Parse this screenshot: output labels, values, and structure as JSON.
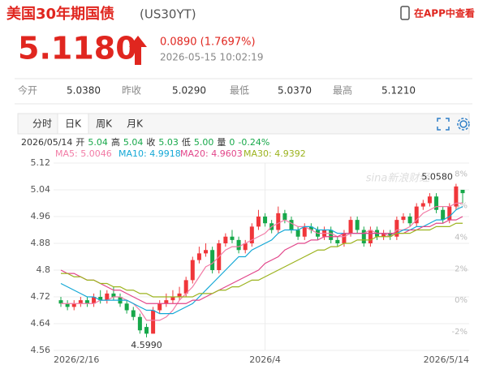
{
  "header": {
    "title": "美国30年期国债",
    "code": "(US30YT)",
    "app_link": "在APP中查看",
    "price": "5.1180",
    "change": "0.0890 (1.7697%)",
    "time": "2026-05-15 10:02:19"
  },
  "stats": [
    {
      "label": "今开",
      "value": "5.0380"
    },
    {
      "label": "昨收",
      "value": "5.0290"
    },
    {
      "label": "最低",
      "value": "5.0370"
    },
    {
      "label": "最高",
      "value": "5.1210"
    }
  ],
  "tabs": [
    "分时",
    "日K",
    "周K",
    "月K"
  ],
  "active_tab": 1,
  "info": {
    "date": "2026/05/14",
    "items": [
      {
        "label": "开",
        "value": "5.04"
      },
      {
        "label": "高",
        "value": "5.04"
      },
      {
        "label": "收",
        "value": "5.03"
      },
      {
        "label": "低",
        "value": "5.00"
      },
      {
        "label": "量",
        "value": "0"
      }
    ],
    "change": "-0.24%"
  },
  "chart_data": {
    "type": "candlestick",
    "watermark": "sina新浪财经",
    "categories": [
      "2026/2/16",
      null,
      null,
      null,
      null,
      null,
      null,
      null,
      null,
      null,
      null,
      null,
      null,
      null,
      null,
      null,
      null,
      null,
      null,
      null,
      null,
      null,
      null,
      null,
      null,
      null,
      null,
      null,
      null,
      null,
      null,
      "2026/4",
      null,
      null,
      null,
      null,
      null,
      null,
      null,
      null,
      null,
      null,
      null,
      null,
      null,
      null,
      null,
      null,
      null,
      null,
      null,
      null,
      null,
      null,
      null,
      null,
      null,
      null,
      null,
      null,
      null,
      "2026/5/14"
    ],
    "open": [
      4.71,
      4.7,
      4.69,
      4.7,
      4.71,
      4.7,
      4.72,
      4.71,
      4.73,
      4.72,
      4.7,
      4.68,
      4.66,
      4.63,
      4.61,
      4.68,
      4.7,
      4.71,
      4.72,
      4.73,
      4.77,
      4.83,
      4.85,
      4.86,
      4.8,
      4.88,
      4.9,
      4.89,
      4.86,
      4.88,
      4.93,
      4.96,
      4.94,
      4.92,
      4.97,
      4.95,
      4.92,
      4.9,
      4.93,
      4.92,
      4.9,
      4.92,
      4.89,
      4.88,
      4.91,
      4.95,
      4.92,
      4.88,
      4.92,
      4.9,
      4.91,
      4.9,
      4.95,
      4.96,
      4.94,
      4.99,
      5.0,
      5.02,
      4.98,
      4.95,
      4.99,
      5.04
    ],
    "high": [
      4.72,
      4.71,
      4.71,
      4.72,
      4.72,
      4.73,
      4.74,
      4.74,
      4.75,
      4.73,
      4.71,
      4.69,
      4.67,
      4.64,
      4.69,
      4.71,
      4.73,
      4.74,
      4.75,
      4.78,
      4.84,
      4.87,
      4.88,
      4.87,
      4.89,
      4.91,
      4.92,
      4.9,
      4.89,
      4.94,
      4.98,
      4.97,
      4.95,
      4.99,
      4.98,
      4.96,
      4.93,
      4.94,
      4.94,
      4.93,
      4.93,
      4.93,
      4.9,
      4.92,
      4.96,
      4.96,
      4.93,
      4.93,
      4.93,
      4.92,
      4.92,
      4.96,
      4.97,
      4.97,
      5.0,
      5.01,
      5.03,
      5.03,
      4.99,
      5.0,
      5.058,
      5.04
    ],
    "low": [
      4.69,
      4.68,
      4.68,
      4.69,
      4.69,
      4.69,
      4.7,
      4.7,
      4.71,
      4.69,
      4.67,
      4.65,
      4.61,
      4.599,
      4.61,
      4.67,
      4.69,
      4.7,
      4.71,
      4.72,
      4.76,
      4.82,
      4.84,
      4.79,
      4.79,
      4.87,
      4.88,
      4.85,
      4.85,
      4.87,
      4.92,
      4.93,
      4.91,
      4.91,
      4.94,
      4.91,
      4.89,
      4.89,
      4.91,
      4.89,
      4.89,
      4.88,
      4.87,
      4.87,
      4.9,
      4.91,
      4.87,
      4.87,
      4.89,
      4.89,
      4.89,
      4.89,
      4.94,
      4.93,
      4.93,
      4.98,
      4.99,
      4.97,
      4.94,
      4.94,
      4.98,
      5.0
    ],
    "close": [
      4.7,
      4.69,
      4.7,
      4.71,
      4.7,
      4.72,
      4.71,
      4.73,
      4.72,
      4.7,
      4.68,
      4.66,
      4.62,
      4.61,
      4.68,
      4.7,
      4.71,
      4.72,
      4.73,
      4.77,
      4.83,
      4.85,
      4.86,
      4.8,
      4.88,
      4.9,
      4.89,
      4.86,
      4.88,
      4.93,
      4.96,
      4.94,
      4.92,
      4.97,
      4.95,
      4.92,
      4.9,
      4.93,
      4.92,
      4.9,
      4.92,
      4.89,
      4.88,
      4.91,
      4.95,
      4.92,
      4.88,
      4.92,
      4.9,
      4.91,
      4.9,
      4.95,
      4.96,
      4.94,
      4.99,
      5.0,
      5.02,
      4.98,
      4.95,
      4.99,
      5.05,
      5.03
    ],
    "up_color": "#f0363a",
    "down_color": "#17a84a",
    "high_label": {
      "value": 5.058,
      "label": "5.0580"
    },
    "low_label": {
      "value": 4.599,
      "label": "4.5990"
    },
    "series": [
      {
        "name": "MA5: 5.0046",
        "color": "#f27ca6",
        "values": [
          4.7,
          4.7,
          4.7,
          4.7,
          4.7,
          4.7,
          4.71,
          4.71,
          4.72,
          4.72,
          4.71,
          4.7,
          4.68,
          4.65,
          4.65,
          4.65,
          4.66,
          4.68,
          4.71,
          4.73,
          4.75,
          4.78,
          4.81,
          4.82,
          4.84,
          4.86,
          4.87,
          4.87,
          4.88,
          4.89,
          4.9,
          4.91,
          4.93,
          4.94,
          4.95,
          4.94,
          4.93,
          4.93,
          4.92,
          4.91,
          4.91,
          4.91,
          4.9,
          4.9,
          4.91,
          4.91,
          4.91,
          4.92,
          4.91,
          4.91,
          4.9,
          4.92,
          4.92,
          4.93,
          4.95,
          4.97,
          4.98,
          4.99,
          4.99,
          4.99,
          5.0,
          5.0
        ]
      },
      {
        "name": "MA10: 4.9918",
        "color": "#14a8d6",
        "values": [
          4.76,
          4.75,
          4.74,
          4.73,
          4.72,
          4.72,
          4.71,
          4.71,
          4.71,
          4.71,
          4.71,
          4.7,
          4.69,
          4.68,
          4.68,
          4.67,
          4.67,
          4.67,
          4.68,
          4.69,
          4.7,
          4.72,
          4.74,
          4.76,
          4.78,
          4.8,
          4.82,
          4.84,
          4.84,
          4.86,
          4.87,
          4.88,
          4.89,
          4.91,
          4.92,
          4.92,
          4.92,
          4.93,
          4.93,
          4.92,
          4.92,
          4.92,
          4.91,
          4.91,
          4.91,
          4.91,
          4.91,
          4.91,
          4.91,
          4.91,
          4.91,
          4.91,
          4.92,
          4.92,
          4.93,
          4.93,
          4.94,
          4.95,
          4.95,
          4.96,
          4.98,
          4.99
        ]
      },
      {
        "name": "MA20: 4.9603",
        "color": "#e2468a",
        "values": [
          4.8,
          4.79,
          4.79,
          4.78,
          4.77,
          4.77,
          4.76,
          4.75,
          4.74,
          4.74,
          4.73,
          4.72,
          4.71,
          4.7,
          4.7,
          4.7,
          4.7,
          4.7,
          4.7,
          4.7,
          4.71,
          4.71,
          4.72,
          4.73,
          4.74,
          4.75,
          4.76,
          4.77,
          4.78,
          4.79,
          4.8,
          4.82,
          4.83,
          4.84,
          4.86,
          4.87,
          4.88,
          4.88,
          4.89,
          4.89,
          4.9,
          4.9,
          4.9,
          4.91,
          4.91,
          4.91,
          4.91,
          4.91,
          4.91,
          4.91,
          4.91,
          4.91,
          4.91,
          4.92,
          4.92,
          4.93,
          4.93,
          4.94,
          4.94,
          4.95,
          4.95,
          4.96
        ]
      },
      {
        "name": "MA30: 4.9392",
        "color": "#9cb31e",
        "values": [
          4.79,
          4.79,
          4.78,
          4.78,
          4.77,
          4.77,
          4.76,
          4.76,
          4.75,
          4.75,
          4.74,
          4.74,
          4.73,
          4.73,
          4.72,
          4.72,
          4.72,
          4.72,
          4.72,
          4.72,
          4.72,
          4.73,
          4.73,
          4.73,
          4.74,
          4.74,
          4.75,
          4.75,
          4.76,
          4.77,
          4.77,
          4.78,
          4.79,
          4.8,
          4.81,
          4.82,
          4.83,
          4.84,
          4.85,
          4.86,
          4.86,
          4.87,
          4.87,
          4.88,
          4.88,
          4.89,
          4.89,
          4.89,
          4.9,
          4.9,
          4.9,
          4.91,
          4.91,
          4.91,
          4.92,
          4.92,
          4.92,
          4.93,
          4.93,
          4.93,
          4.94,
          4.94
        ]
      }
    ],
    "ylim": [
      4.56,
      5.12
    ],
    "yticks": [
      4.56,
      4.64,
      4.72,
      4.8,
      4.88,
      4.96,
      5.04,
      5.12
    ],
    "y2lim": [
      -3.18,
      8.7
    ],
    "y2ticks": [
      {
        "value": -2,
        "label": "-2%"
      },
      {
        "value": 0,
        "label": "0%"
      },
      {
        "value": 2,
        "label": "2%"
      },
      {
        "value": 4,
        "label": "4%"
      },
      {
        "value": 6,
        "label": "6%"
      },
      {
        "value": 8,
        "label": "8%"
      }
    ],
    "grid": true
  }
}
